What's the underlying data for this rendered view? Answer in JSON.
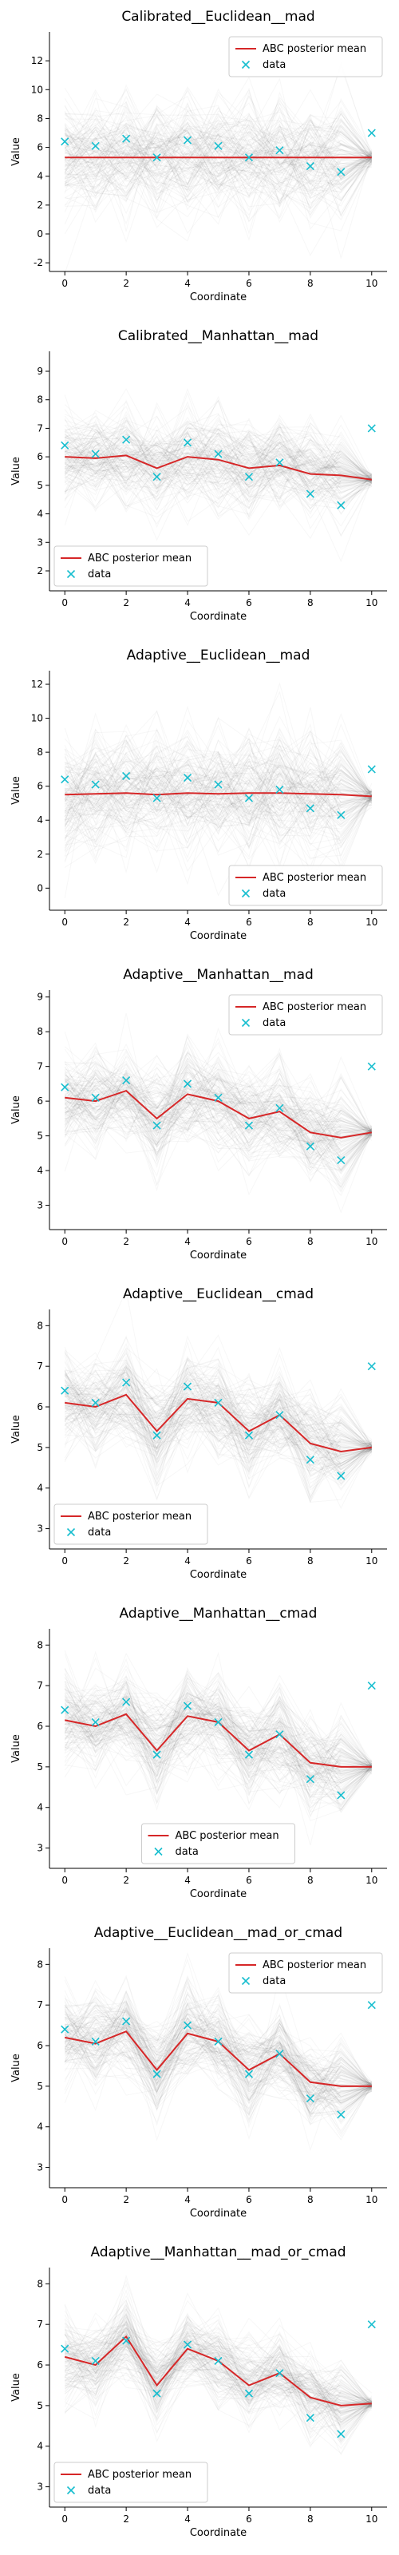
{
  "figure": {
    "layout": "8 panels stacked vertically"
  },
  "chart_data": [
    {
      "type": "line",
      "title": "Calibrated__Euclidean__mad",
      "xlabel": "Coordinate",
      "ylabel": "Value",
      "xlim": [
        -0.5,
        10.5
      ],
      "ylim": [
        -2.6,
        14.0
      ],
      "xticks": [
        0,
        2,
        4,
        6,
        8,
        10
      ],
      "yticks": [
        -2,
        0,
        2,
        4,
        6,
        8,
        10,
        12
      ],
      "legend": {
        "location": "upper-right",
        "entries": [
          "ABC posterior mean",
          "data"
        ]
      },
      "spread": 4.0,
      "series": [
        {
          "name": "ABC posterior mean",
          "kind": "line",
          "color": "#d62728",
          "x": [
            0,
            1,
            2,
            3,
            4,
            5,
            6,
            7,
            8,
            9,
            10
          ],
          "y": [
            5.3,
            5.3,
            5.3,
            5.3,
            5.3,
            5.3,
            5.3,
            5.3,
            5.3,
            5.3,
            5.3
          ]
        },
        {
          "name": "data",
          "kind": "marker",
          "color": "#17becf",
          "x": [
            0,
            1,
            2,
            3,
            4,
            5,
            6,
            7,
            8,
            9,
            10
          ],
          "y": [
            6.4,
            6.1,
            6.6,
            5.3,
            6.5,
            6.1,
            5.3,
            5.8,
            4.7,
            4.3,
            7.0
          ]
        }
      ]
    },
    {
      "type": "line",
      "title": "Calibrated__Manhattan__mad",
      "xlabel": "Coordinate",
      "ylabel": "Value",
      "xlim": [
        -0.5,
        10.5
      ],
      "ylim": [
        1.3,
        9.7
      ],
      "xticks": [
        0,
        2,
        4,
        6,
        8,
        10
      ],
      "yticks": [
        2,
        3,
        4,
        5,
        6,
        7,
        8,
        9
      ],
      "legend": {
        "location": "lower-left",
        "entries": [
          "ABC posterior mean",
          "data"
        ]
      },
      "spread": 1.6,
      "series": [
        {
          "name": "ABC posterior mean",
          "kind": "line",
          "color": "#d62728",
          "x": [
            0,
            1,
            2,
            3,
            4,
            5,
            6,
            7,
            8,
            9,
            10
          ],
          "y": [
            6.0,
            5.95,
            6.05,
            5.6,
            6.0,
            5.9,
            5.6,
            5.7,
            5.4,
            5.35,
            5.2
          ]
        },
        {
          "name": "data",
          "kind": "marker",
          "color": "#17becf",
          "x": [
            0,
            1,
            2,
            3,
            4,
            5,
            6,
            7,
            8,
            9,
            10
          ],
          "y": [
            6.4,
            6.1,
            6.6,
            5.3,
            6.5,
            6.1,
            5.3,
            5.8,
            4.7,
            4.3,
            7.0
          ]
        }
      ]
    },
    {
      "type": "line",
      "title": "Adaptive__Euclidean__mad",
      "xlabel": "Coordinate",
      "ylabel": "Value",
      "xlim": [
        -0.5,
        10.5
      ],
      "ylim": [
        -1.3,
        12.8
      ],
      "xticks": [
        0,
        2,
        4,
        6,
        8,
        10
      ],
      "yticks": [
        0,
        2,
        4,
        6,
        8,
        10,
        12
      ],
      "legend": {
        "location": "lower-right",
        "entries": [
          "ABC posterior mean",
          "data"
        ]
      },
      "spread": 3.6,
      "series": [
        {
          "name": "ABC posterior mean",
          "kind": "line",
          "color": "#d62728",
          "x": [
            0,
            1,
            2,
            3,
            4,
            5,
            6,
            7,
            8,
            9,
            10
          ],
          "y": [
            5.5,
            5.55,
            5.6,
            5.5,
            5.6,
            5.55,
            5.6,
            5.6,
            5.55,
            5.5,
            5.4
          ]
        },
        {
          "name": "data",
          "kind": "marker",
          "color": "#17becf",
          "x": [
            0,
            1,
            2,
            3,
            4,
            5,
            6,
            7,
            8,
            9,
            10
          ],
          "y": [
            6.4,
            6.1,
            6.6,
            5.3,
            6.5,
            6.1,
            5.3,
            5.8,
            4.7,
            4.3,
            7.0
          ]
        }
      ]
    },
    {
      "type": "line",
      "title": "Adaptive__Manhattan__mad",
      "xlabel": "Coordinate",
      "ylabel": "Value",
      "xlim": [
        -0.5,
        10.5
      ],
      "ylim": [
        2.3,
        9.2
      ],
      "xticks": [
        0,
        2,
        4,
        6,
        8,
        10
      ],
      "yticks": [
        3,
        4,
        5,
        6,
        7,
        8,
        9
      ],
      "legend": {
        "location": "upper-right",
        "entries": [
          "ABC posterior mean",
          "data"
        ]
      },
      "spread": 1.4,
      "series": [
        {
          "name": "ABC posterior mean",
          "kind": "line",
          "color": "#d62728",
          "x": [
            0,
            1,
            2,
            3,
            4,
            5,
            6,
            7,
            8,
            9,
            10
          ],
          "y": [
            6.1,
            6.0,
            6.3,
            5.5,
            6.2,
            6.0,
            5.5,
            5.7,
            5.1,
            4.95,
            5.1
          ]
        },
        {
          "name": "data",
          "kind": "marker",
          "color": "#17becf",
          "x": [
            0,
            1,
            2,
            3,
            4,
            5,
            6,
            7,
            8,
            9,
            10
          ],
          "y": [
            6.4,
            6.1,
            6.6,
            5.3,
            6.5,
            6.1,
            5.3,
            5.8,
            4.7,
            4.3,
            7.0
          ]
        }
      ]
    },
    {
      "type": "line",
      "title": "Adaptive__Euclidean__cmad",
      "xlabel": "Coordinate",
      "ylabel": "Value",
      "xlim": [
        -0.5,
        10.5
      ],
      "ylim": [
        2.5,
        8.4
      ],
      "xticks": [
        0,
        2,
        4,
        6,
        8,
        10
      ],
      "yticks": [
        3,
        4,
        5,
        6,
        7,
        8
      ],
      "legend": {
        "location": "lower-left",
        "entries": [
          "ABC posterior mean",
          "data"
        ]
      },
      "spread": 1.2,
      "series": [
        {
          "name": "ABC posterior mean",
          "kind": "line",
          "color": "#d62728",
          "x": [
            0,
            1,
            2,
            3,
            4,
            5,
            6,
            7,
            8,
            9,
            10
          ],
          "y": [
            6.1,
            6.0,
            6.3,
            5.4,
            6.2,
            6.1,
            5.4,
            5.8,
            5.1,
            4.9,
            5.0
          ]
        },
        {
          "name": "data",
          "kind": "marker",
          "color": "#17becf",
          "x": [
            0,
            1,
            2,
            3,
            4,
            5,
            6,
            7,
            8,
            9,
            10
          ],
          "y": [
            6.4,
            6.1,
            6.6,
            5.3,
            6.5,
            6.1,
            5.3,
            5.8,
            4.7,
            4.3,
            7.0
          ]
        }
      ]
    },
    {
      "type": "line",
      "title": "Adaptive__Manhattan__cmad",
      "xlabel": "Coordinate",
      "ylabel": "Value",
      "xlim": [
        -0.5,
        10.5
      ],
      "ylim": [
        2.5,
        8.4
      ],
      "xticks": [
        0,
        2,
        4,
        6,
        8,
        10
      ],
      "yticks": [
        3,
        4,
        5,
        6,
        7,
        8
      ],
      "legend": {
        "location": "lower-center",
        "entries": [
          "ABC posterior mean",
          "data"
        ]
      },
      "spread": 1.2,
      "series": [
        {
          "name": "ABC posterior mean",
          "kind": "line",
          "color": "#d62728",
          "x": [
            0,
            1,
            2,
            3,
            4,
            5,
            6,
            7,
            8,
            9,
            10
          ],
          "y": [
            6.15,
            6.0,
            6.3,
            5.4,
            6.25,
            6.1,
            5.4,
            5.8,
            5.1,
            5.0,
            5.0
          ]
        },
        {
          "name": "data",
          "kind": "marker",
          "color": "#17becf",
          "x": [
            0,
            1,
            2,
            3,
            4,
            5,
            6,
            7,
            8,
            9,
            10
          ],
          "y": [
            6.4,
            6.1,
            6.6,
            5.3,
            6.5,
            6.1,
            5.3,
            5.8,
            4.7,
            4.3,
            7.0
          ]
        }
      ]
    },
    {
      "type": "line",
      "title": "Adaptive__Euclidean__mad_or_cmad",
      "xlabel": "Coordinate",
      "ylabel": "Value",
      "xlim": [
        -0.5,
        10.5
      ],
      "ylim": [
        2.5,
        8.4
      ],
      "xticks": [
        0,
        2,
        4,
        6,
        8,
        10
      ],
      "yticks": [
        3,
        4,
        5,
        6,
        7,
        8
      ],
      "legend": {
        "location": "upper-right",
        "entries": [
          "ABC posterior mean",
          "data"
        ]
      },
      "spread": 1.1,
      "series": [
        {
          "name": "ABC posterior mean",
          "kind": "line",
          "color": "#d62728",
          "x": [
            0,
            1,
            2,
            3,
            4,
            5,
            6,
            7,
            8,
            9,
            10
          ],
          "y": [
            6.2,
            6.05,
            6.35,
            5.4,
            6.3,
            6.1,
            5.4,
            5.8,
            5.1,
            5.0,
            5.0
          ]
        },
        {
          "name": "data",
          "kind": "marker",
          "color": "#17becf",
          "x": [
            0,
            1,
            2,
            3,
            4,
            5,
            6,
            7,
            8,
            9,
            10
          ],
          "y": [
            6.4,
            6.1,
            6.6,
            5.3,
            6.5,
            6.1,
            5.3,
            5.8,
            4.7,
            4.3,
            7.0
          ]
        }
      ]
    },
    {
      "type": "line",
      "title": "Adaptive__Manhattan__mad_or_cmad",
      "xlabel": "Coordinate",
      "ylabel": "Value",
      "xlim": [
        -0.5,
        10.5
      ],
      "ylim": [
        2.5,
        8.4
      ],
      "xticks": [
        0,
        2,
        4,
        6,
        8,
        10
      ],
      "yticks": [
        3,
        4,
        5,
        6,
        7,
        8
      ],
      "legend": {
        "location": "lower-left",
        "entries": [
          "ABC posterior mean",
          "data"
        ]
      },
      "spread": 1.0,
      "series": [
        {
          "name": "ABC posterior mean",
          "kind": "line",
          "color": "#d62728",
          "x": [
            0,
            1,
            2,
            3,
            4,
            5,
            6,
            7,
            8,
            9,
            10
          ],
          "y": [
            6.2,
            6.0,
            6.7,
            5.5,
            6.4,
            6.1,
            5.5,
            5.8,
            5.2,
            5.0,
            5.05
          ]
        },
        {
          "name": "data",
          "kind": "marker",
          "color": "#17becf",
          "x": [
            0,
            1,
            2,
            3,
            4,
            5,
            6,
            7,
            8,
            9,
            10
          ],
          "y": [
            6.4,
            6.1,
            6.6,
            5.3,
            6.5,
            6.1,
            5.3,
            5.8,
            4.7,
            4.3,
            7.0
          ]
        }
      ]
    }
  ]
}
